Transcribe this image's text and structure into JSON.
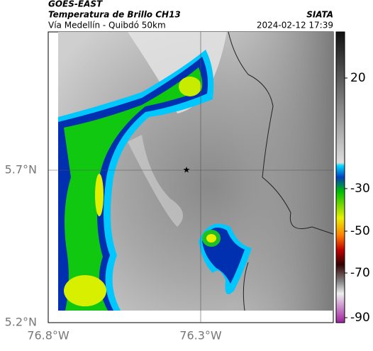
{
  "header": {
    "source": "GOES-EAST",
    "title": "Temperatura de Brillo CH13",
    "subtitle": "Vía Medellín - Quibdó 50km",
    "org": "SIATA",
    "datetime": "2024-02-12 17:39"
  },
  "axes": {
    "lat_labels": [
      "5.7°N",
      "5.2°N"
    ],
    "lon_labels": [
      "76.8°W",
      "76.3°W"
    ]
  },
  "colorbar": {
    "ticks": [
      20,
      -30,
      -50,
      -70,
      -90
    ]
  }
}
